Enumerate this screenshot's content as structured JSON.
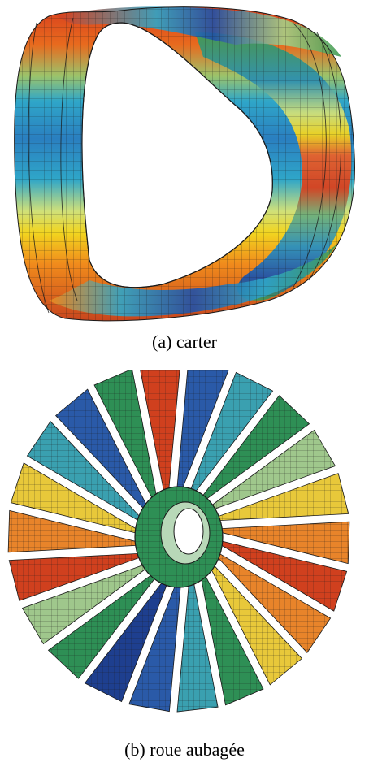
{
  "figure_a": {
    "caption": "(a) carter",
    "colors": {
      "red": "#d8401e",
      "orange": "#f08a1c",
      "yellow": "#f2d51f",
      "green": "#3f9a53",
      "light_green": "#a8cf86",
      "cyan": "#2fa6c8",
      "blue": "#2050a8",
      "mesh": "#1a1a1a"
    }
  },
  "figure_b": {
    "caption": "(b) roue aubagée",
    "colors": {
      "red": "#d0401e",
      "orange": "#e8842a",
      "yellow": "#e8c83a",
      "green": "#2e8f55",
      "light_green": "#9fc78c",
      "cyan": "#3aa0b0",
      "blue": "#2a5aa8",
      "dark_blue": "#1e3f8f",
      "mesh": "#1a1a1a"
    },
    "blade_count": 22
  }
}
